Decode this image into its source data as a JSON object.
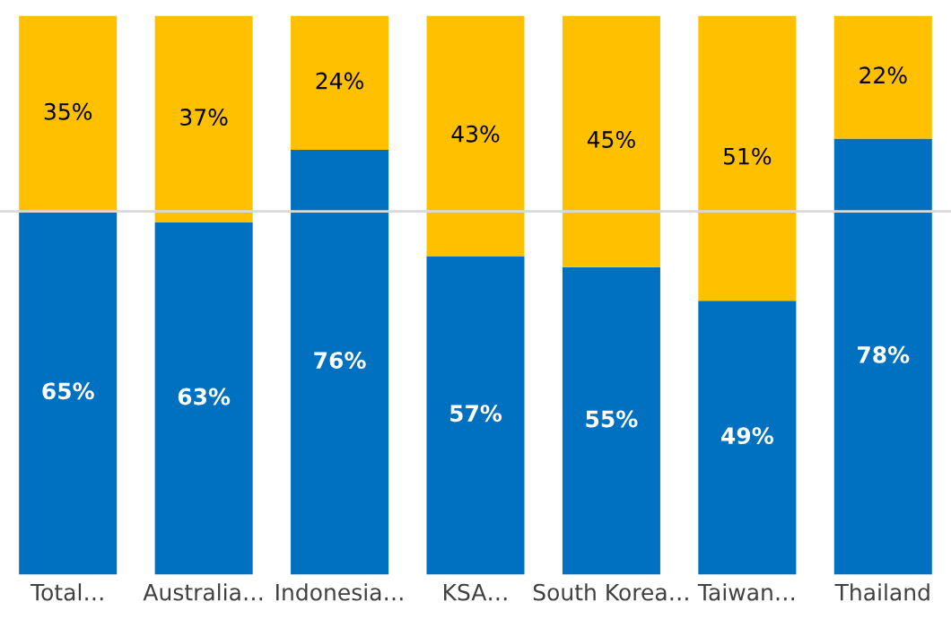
{
  "chart_data": {
    "type": "bar",
    "stacked": true,
    "tick_labels": "x",
    "legend": false,
    "grid": false,
    "categories": [
      "Total…",
      "Australia…",
      "Indonesia…",
      "KSA…",
      "South Korea…",
      "Taiwan…",
      "Thailand"
    ],
    "series": [
      {
        "color": "#0070c0",
        "values": [
          65,
          63,
          76,
          57,
          55,
          49,
          78
        ],
        "value_labels": [
          "65%",
          "63%",
          "76%",
          "57%",
          "55%",
          "49%",
          "78%"
        ]
      },
      {
        "color": "#ffc000",
        "values": [
          35,
          37,
          24,
          43,
          45,
          51,
          22
        ],
        "value_labels": [
          "35%",
          "37%",
          "24%",
          "43%",
          "45%",
          "51%",
          "22%"
        ]
      }
    ],
    "ref_lines": [
      {
        "axis": "y",
        "value": 65,
        "color": "#d9d9d9",
        "line_style": "solid"
      }
    ]
  }
}
